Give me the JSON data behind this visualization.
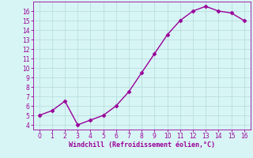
{
  "x": [
    0,
    1,
    2,
    3,
    4,
    5,
    6,
    7,
    8,
    9,
    10,
    11,
    12,
    13,
    14,
    15,
    16
  ],
  "y": [
    5.0,
    5.5,
    6.5,
    4.0,
    4.5,
    5.0,
    6.0,
    7.5,
    9.5,
    11.5,
    13.5,
    15.0,
    16.0,
    16.5,
    16.0,
    15.8,
    15.0
  ],
  "line_color": "#990099",
  "marker": "D",
  "marker_size": 2.5,
  "linewidth": 1.0,
  "xlabel": "Windchill (Refroidissement éolien,°C)",
  "xlabel_color": "#990099",
  "background_color": "#d8f5f5",
  "grid_color": "#b8dede",
  "tick_color": "#990099",
  "spine_color": "#990099",
  "xlim": [
    -0.5,
    16.5
  ],
  "ylim": [
    3.5,
    17.0
  ],
  "xticks": [
    0,
    1,
    2,
    3,
    4,
    5,
    6,
    7,
    8,
    9,
    10,
    11,
    12,
    13,
    14,
    15,
    16
  ],
  "yticks": [
    4,
    5,
    6,
    7,
    8,
    9,
    10,
    11,
    12,
    13,
    14,
    15,
    16
  ],
  "tick_fontsize": 5.5,
  "xlabel_fontsize": 6.0
}
